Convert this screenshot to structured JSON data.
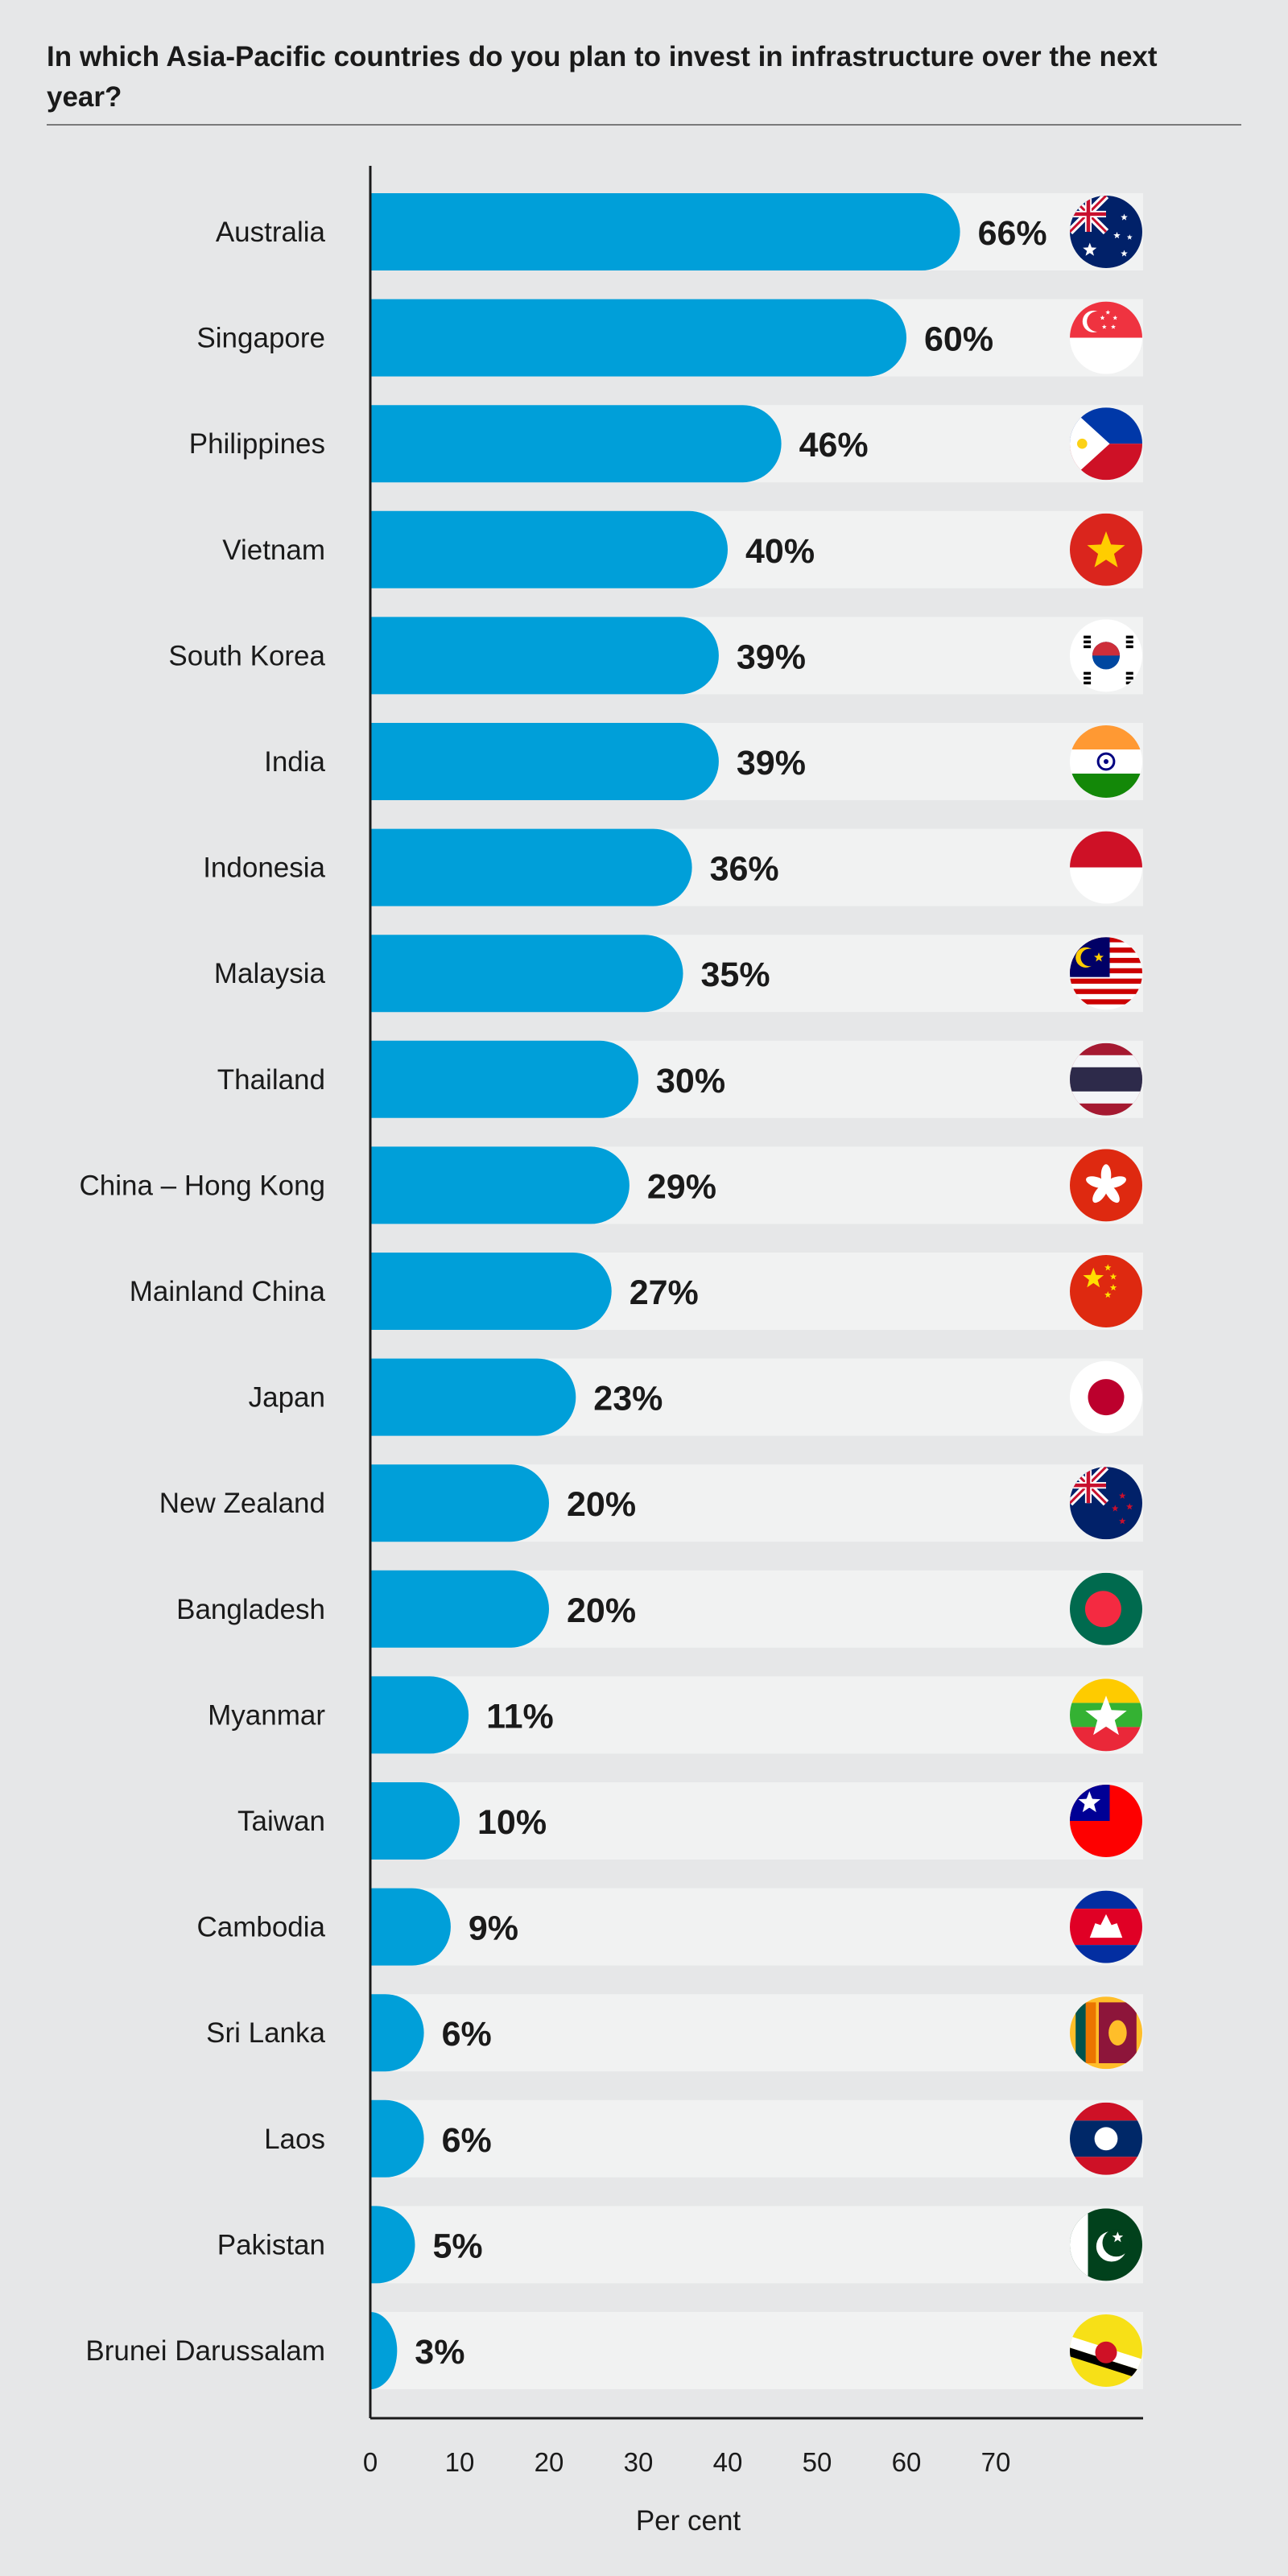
{
  "title": "In which Asia-Pacific countries do you plan to invest in infrastructure over the next year?",
  "colors": {
    "bar": "#009fd9",
    "track": "#f1f2f2",
    "background": "#e6e7e8",
    "text": "#1a1a1a",
    "axis": "#1a1a1a"
  },
  "chart_data": {
    "type": "bar",
    "orientation": "horizontal",
    "title": "In which Asia-Pacific countries do you plan to invest in infrastructure over the next year?",
    "xlabel": "Per cent",
    "ylabel": "",
    "xlim": [
      0,
      70
    ],
    "xticks": [
      0,
      10,
      20,
      30,
      40,
      50,
      60,
      70
    ],
    "grid": false,
    "categories": [
      "Australia",
      "Singapore",
      "Philippines",
      "Vietnam",
      "South Korea",
      "India",
      "Indonesia",
      "Malaysia",
      "Thailand",
      "China – Hong Kong",
      "Mainland China",
      "Japan",
      "New Zealand",
      "Bangladesh",
      "Myanmar",
      "Taiwan",
      "Cambodia",
      "Sri Lanka",
      "Laos",
      "Pakistan",
      "Brunei Darussalam"
    ],
    "values": [
      66,
      60,
      46,
      40,
      39,
      39,
      36,
      35,
      30,
      29,
      27,
      23,
      20,
      20,
      11,
      10,
      9,
      6,
      6,
      5,
      3
    ],
    "value_labels": [
      "66%",
      "60%",
      "46%",
      "40%",
      "39%",
      "39%",
      "36%",
      "35%",
      "30%",
      "29%",
      "27%",
      "23%",
      "20%",
      "20%",
      "11%",
      "10%",
      "9%",
      "6%",
      "6%",
      "5%",
      "3%"
    ],
    "flags": [
      "australia-flag-icon",
      "singapore-flag-icon",
      "philippines-flag-icon",
      "vietnam-flag-icon",
      "south-korea-flag-icon",
      "india-flag-icon",
      "indonesia-flag-icon",
      "malaysia-flag-icon",
      "thailand-flag-icon",
      "hong-kong-flag-icon",
      "china-flag-icon",
      "japan-flag-icon",
      "new-zealand-flag-icon",
      "bangladesh-flag-icon",
      "myanmar-flag-icon",
      "taiwan-flag-icon",
      "cambodia-flag-icon",
      "sri-lanka-flag-icon",
      "laos-flag-icon",
      "pakistan-flag-icon",
      "brunei-flag-icon"
    ]
  }
}
